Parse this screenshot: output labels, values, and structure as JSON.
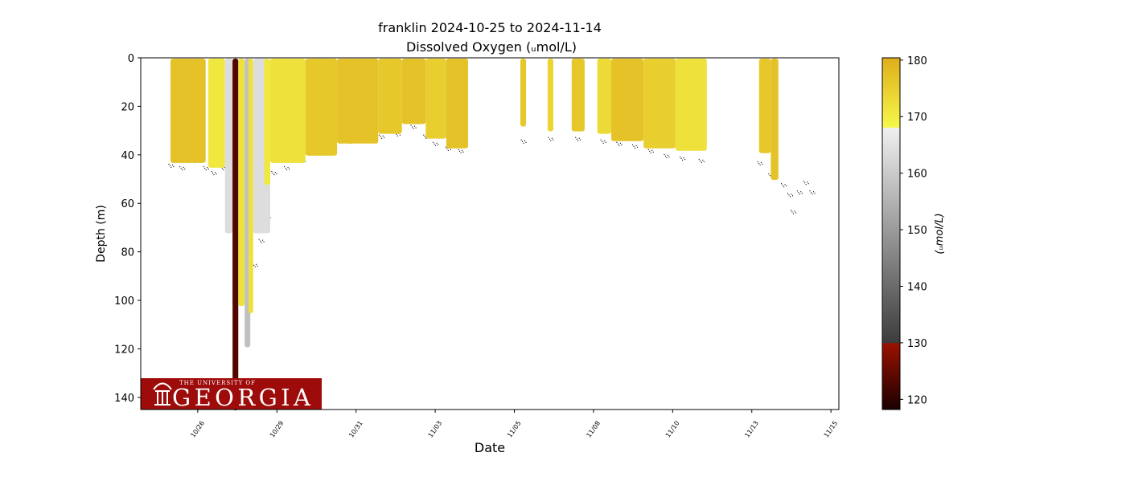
{
  "chart_data": {
    "type": "scatter",
    "title_line1": "franklin 2024-10-25 to 2024-11-14",
    "title_line2": "Dissolved Oxygen (ᵤmol/L)",
    "xlabel": "Date",
    "ylabel": "Depth (m)",
    "colorbar_label": "(ᵤmol/L)",
    "x_units": "days since 2024-10-25 00:00",
    "xlim": [
      -0.3,
      21.75
    ],
    "ylim": [
      145,
      0
    ],
    "x_ticks": [
      {
        "v": 1.5,
        "label": "10/26"
      },
      {
        "v": 4,
        "label": "10/29"
      },
      {
        "v": 6.5,
        "label": "10/31"
      },
      {
        "v": 9,
        "label": "11/03"
      },
      {
        "v": 11.5,
        "label": "11/05"
      },
      {
        "v": 14,
        "label": "11/08"
      },
      {
        "v": 16.5,
        "label": "11/10"
      },
      {
        "v": 19,
        "label": "11/13"
      },
      {
        "v": 21.5,
        "label": "11/15"
      }
    ],
    "y_ticks": [
      0,
      20,
      40,
      60,
      80,
      100,
      120,
      140
    ],
    "colorbar_range": [
      118.2,
      180.4
    ],
    "colorbar_ticks": [
      120,
      130,
      140,
      150,
      160,
      170,
      180
    ],
    "colormap": [
      [
        118.2,
        "#1a0000"
      ],
      [
        129.9,
        "#9b1100"
      ],
      [
        130,
        "#3c3c3c"
      ],
      [
        168,
        "#f0f0f0"
      ],
      [
        168.1,
        "#f5f84a"
      ],
      [
        180.4,
        "#dfae1a"
      ]
    ],
    "profiles": [
      {
        "d0": 0.64,
        "d1": 1.75,
        "depth": 43,
        "do": 177
      },
      {
        "d0": 1.83,
        "d1": 2.36,
        "depth": 45,
        "do": 171
      },
      {
        "d0": 2.36,
        "d1": 2.6,
        "depth": 72,
        "do": 164
      },
      {
        "d0": 2.6,
        "d1": 2.78,
        "depth": 102,
        "do": 145
      },
      {
        "d0": 2.6,
        "d1": 2.78,
        "depth": 145,
        "do": 123
      },
      {
        "d0": 2.78,
        "d1": 2.98,
        "depth": 102,
        "do": 172
      },
      {
        "d0": 2.98,
        "d1": 3.16,
        "depth": 119,
        "do": 158
      },
      {
        "d0": 3.1,
        "d1": 3.25,
        "depth": 105,
        "do": 172
      },
      {
        "d0": 3.25,
        "d1": 3.79,
        "depth": 72,
        "do": 164
      },
      {
        "d0": 3.6,
        "d1": 3.79,
        "depth": 52,
        "do": 171
      },
      {
        "d0": 3.79,
        "d1": 4.9,
        "depth": 43,
        "do": 172
      },
      {
        "d0": 4.9,
        "d1": 5.9,
        "depth": 40,
        "do": 176
      },
      {
        "d0": 5.9,
        "d1": 7.2,
        "depth": 35,
        "do": 177
      },
      {
        "d0": 7.2,
        "d1": 7.95,
        "depth": 31,
        "do": 176
      },
      {
        "d0": 7.95,
        "d1": 8.7,
        "depth": 27,
        "do": 177
      },
      {
        "d0": 8.7,
        "d1": 9.35,
        "depth": 33,
        "do": 175
      },
      {
        "d0": 9.35,
        "d1": 10.04,
        "depth": 37,
        "do": 177
      },
      {
        "d0": 11.69,
        "d1": 11.87,
        "depth": 28,
        "do": 176
      },
      {
        "d0": 12.55,
        "d1": 12.73,
        "depth": 30,
        "do": 174
      },
      {
        "d0": 13.31,
        "d1": 13.72,
        "depth": 30,
        "do": 176
      },
      {
        "d0": 14.12,
        "d1": 14.56,
        "depth": 31,
        "do": 173
      },
      {
        "d0": 14.56,
        "d1": 15.58,
        "depth": 34,
        "do": 177
      },
      {
        "d0": 15.58,
        "d1": 16.59,
        "depth": 37,
        "do": 175
      },
      {
        "d0": 16.59,
        "d1": 17.58,
        "depth": 38,
        "do": 172
      },
      {
        "d0": 19.23,
        "d1": 19.6,
        "depth": 39,
        "do": 176
      },
      {
        "d0": 19.6,
        "d1": 19.84,
        "depth": 50,
        "do": 177
      }
    ],
    "seafloor": [
      [
        0.65,
        44
      ],
      [
        1.0,
        45
      ],
      [
        1.4,
        42
      ],
      [
        1.75,
        45
      ],
      [
        2.0,
        47
      ],
      [
        2.3,
        45
      ],
      [
        2.5,
        52
      ],
      [
        2.75,
        70
      ],
      [
        3.3,
        85
      ],
      [
        3.5,
        75
      ],
      [
        3.7,
        65
      ],
      [
        3.9,
        47
      ],
      [
        4.3,
        45
      ],
      [
        4.8,
        42
      ],
      [
        5.3,
        38
      ],
      [
        5.8,
        36
      ],
      [
        6.3,
        34
      ],
      [
        6.8,
        33
      ],
      [
        7.3,
        32
      ],
      [
        7.8,
        31
      ],
      [
        8.3,
        28
      ],
      [
        8.7,
        32
      ],
      [
        9.0,
        35
      ],
      [
        9.4,
        37
      ],
      [
        9.8,
        38
      ],
      [
        11.78,
        34
      ],
      [
        12.64,
        33
      ],
      [
        13.5,
        33
      ],
      [
        14.3,
        34
      ],
      [
        14.8,
        35
      ],
      [
        15.3,
        36
      ],
      [
        15.8,
        38
      ],
      [
        16.3,
        40
      ],
      [
        16.8,
        41
      ],
      [
        17.4,
        42
      ],
      [
        19.25,
        43
      ],
      [
        19.6,
        48
      ],
      [
        20.0,
        52
      ],
      [
        20.2,
        56
      ],
      [
        20.3,
        63
      ],
      [
        20.5,
        55
      ],
      [
        20.7,
        51
      ],
      [
        20.9,
        55
      ]
    ],
    "logo_line1": "THE UNIVERSITY OF",
    "logo_line2": "GEORGIA",
    "logo_color": "#9e0b0b"
  }
}
